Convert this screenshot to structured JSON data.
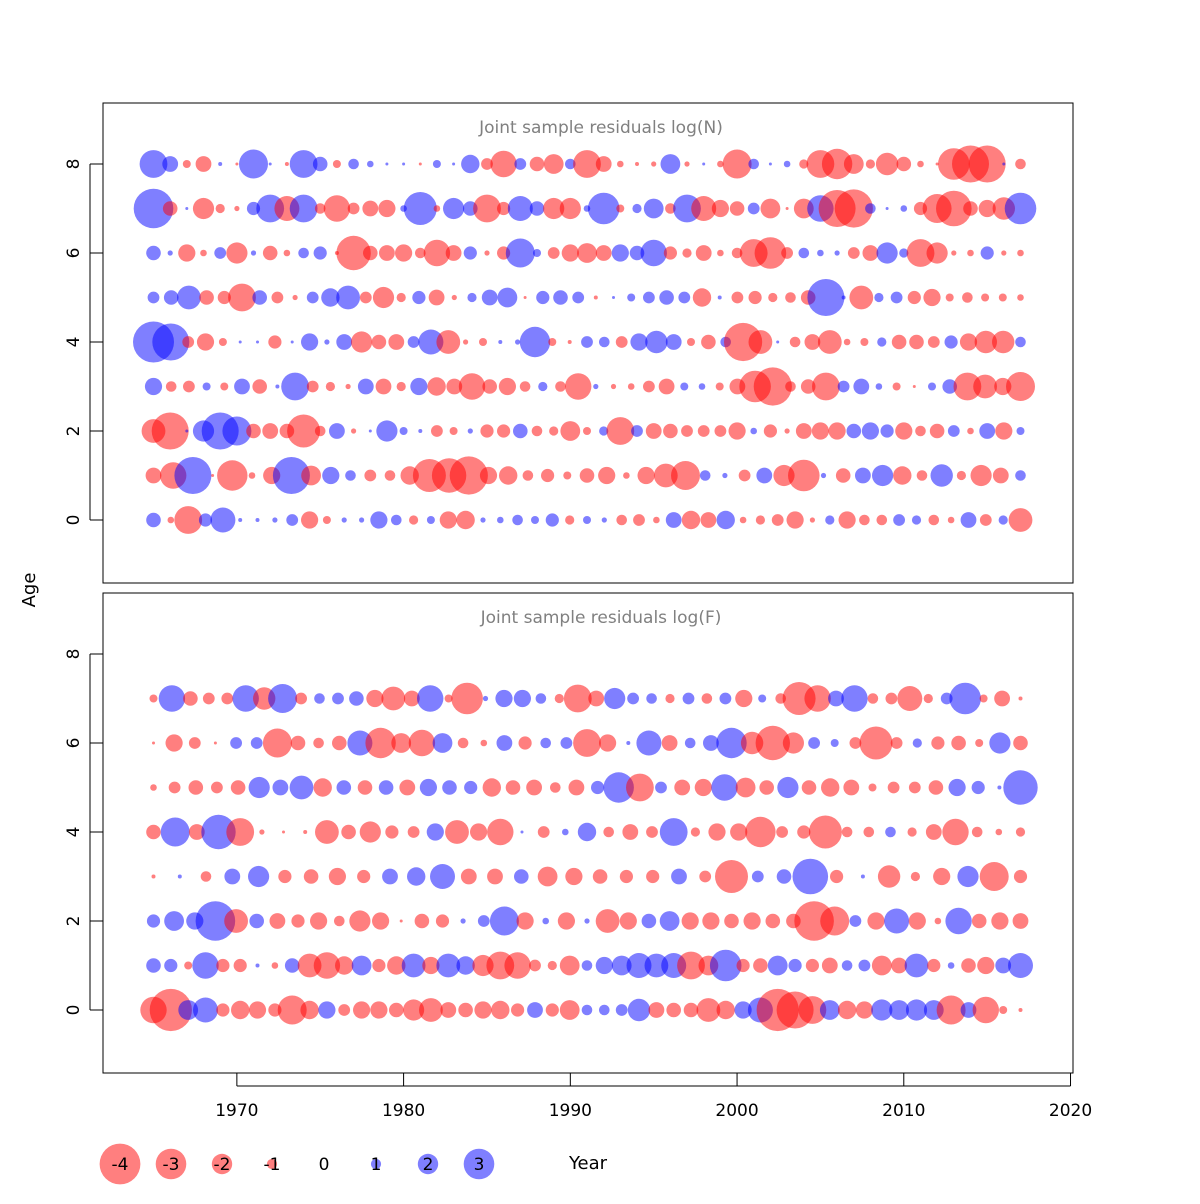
{
  "colors": {
    "negative": "#ff0000",
    "positive": "#0000ff",
    "bubble_opacity": 0.5,
    "title_color": "#808080",
    "axis_color": "#000000"
  },
  "chart_data": {
    "type": "scatter",
    "subtype": "bubble",
    "shared_axes": {
      "xlabel": "Year",
      "ylabel": "Age",
      "x_ticks": [
        1970,
        1980,
        1990,
        2000,
        2010,
        2020
      ],
      "y_ticks": [
        0,
        2,
        4,
        6,
        8
      ],
      "xlim": [
        1962,
        2020
      ],
      "ylim": [
        -1.3,
        9.3
      ]
    },
    "legend": {
      "placement": "bottom",
      "values": [
        -4,
        -3,
        -2,
        -1,
        0,
        1,
        2,
        3
      ],
      "labels": [
        "-4",
        "-3",
        "-2",
        "-1",
        "0",
        "1",
        "2",
        "3"
      ]
    },
    "panels": [
      {
        "title": "Joint sample residuals log(N)",
        "ages": [
          0,
          1,
          2,
          3,
          4,
          5,
          6,
          7,
          8
        ],
        "years": [
          1965,
          2017
        ],
        "residuals": {
          "8": [
            2.1,
            1.2,
            -0.6,
            -1.2,
            0.3,
            -0.2,
            2.2,
            0.1,
            -0.3,
            2.1,
            1.1,
            -0.6,
            0.8,
            0.5,
            0.2,
            0.0,
            -0.1,
            0.6,
            0.1,
            1.4,
            -0.9,
            -2.0,
            0.9,
            -1.1,
            -1.5,
            0.8,
            -2.1,
            -1.2,
            -0.5,
            -0.3,
            -0.4,
            1.5,
            -0.4,
            0.1,
            -0.5,
            -2.2,
            0.8,
            0.1,
            0.5,
            -0.7,
            -2.1,
            -2.3,
            -1.5,
            -0.7,
            -1.7,
            -1.1,
            -0.5,
            -0.2,
            -2.4,
            -2.8,
            -2.8,
            0.1,
            -0.8
          ],
          "7": [
            3.0,
            -1.1,
            0.2,
            -1.6,
            -0.7,
            -0.4,
            1.0,
            2.1,
            -1.9,
            2.1,
            -0.8,
            -2.0,
            -0.9,
            -1.2,
            -1.3,
            0.5,
            2.5,
            -0.5,
            1.6,
            1.1,
            -2.1,
            -1.0,
            1.9,
            1.1,
            -1.6,
            -1.6,
            0.5,
            2.4,
            -0.6,
            0.7,
            1.5,
            -0.8,
            2.1,
            -1.9,
            -1.3,
            -1.1,
            0.9,
            -1.5,
            -0.2,
            -1.5,
            2.0,
            -2.8,
            -2.9,
            0.8,
            0.2,
            0.5,
            -1.0,
            -2.2,
            -2.7,
            -1.1,
            -1.3,
            -1.7,
            2.4
          ],
          "6": [
            1.1,
            0.4,
            -1.3,
            -0.5,
            0.9,
            -1.6,
            0.4,
            -1.1,
            -0.5,
            0.8,
            1.0,
            -0.3,
            -2.6,
            -1.1,
            -1.2,
            -1.3,
            -0.8,
            -2.0,
            -1.2,
            1.0,
            -0.4,
            -1.0,
            2.2,
            0.6,
            -0.9,
            -1.3,
            -1.5,
            -1.2,
            1.3,
            1.1,
            2.0,
            -1.0,
            -0.7,
            -1.2,
            -0.5,
            -0.8,
            -2.1,
            -2.4,
            -0.9,
            0.8,
            0.5,
            0.4,
            -0.9,
            -1.2,
            1.6,
            0.7,
            -2.1,
            -1.6,
            -0.4,
            -0.5,
            1.0,
            -0.4,
            -0.5
          ],
          "5": [
            0.9,
            1.1,
            1.8,
            -1.1,
            -1.0,
            -2.1,
            1.1,
            -0.9,
            -0.4,
            0.9,
            1.4,
            1.8,
            -0.9,
            -1.6,
            -0.7,
            1.0,
            -1.2,
            -0.4,
            0.7,
            1.2,
            1.5,
            -0.2,
            1.0,
            1.1,
            0.9,
            -0.3,
            0.2,
            0.6,
            0.9,
            1.1,
            0.9,
            -1.4,
            0.3,
            -0.9,
            -1.0,
            -0.7,
            -0.8,
            -1.1,
            2.8,
            0.3,
            -1.8,
            0.7,
            0.9,
            -1.0,
            -1.3,
            -0.6,
            -0.8,
            -0.6,
            -0.6,
            -0.5
          ],
          "4": [
            3.1,
            2.8,
            -0.9,
            -1.3,
            -0.6,
            0.2,
            0.1,
            -1.0,
            0.2,
            1.3,
            0.4,
            1.2,
            -1.6,
            -1.1,
            -1.2,
            0.9,
            1.9,
            -1.8,
            -0.4,
            -0.6,
            0.3,
            0.4,
            2.3,
            -0.6,
            -0.3,
            0.9,
            0.8,
            -0.9,
            1.3,
            1.7,
            1.2,
            -0.6,
            -1.1,
            0.8,
            -2.9,
            -1.8,
            0.2,
            -0.8,
            -1.2,
            -1.8,
            -0.5,
            -0.6,
            0.7,
            -1.1,
            -1.1,
            -0.9,
            1.0,
            -1.3,
            -1.7,
            -1.7,
            0.8
          ],
          "3": [
            1.3,
            -0.8,
            -0.9,
            0.6,
            -0.6,
            1.2,
            -1.1,
            0.3,
            2.1,
            -0.9,
            -0.7,
            -0.4,
            1.2,
            -1.2,
            -0.7,
            1.3,
            -1.4,
            -1.2,
            -2.0,
            -1.1,
            -1.3,
            -0.8,
            0.7,
            -0.8,
            -2.0,
            0.4,
            -0.4,
            -0.5,
            -0.9,
            -1.2,
            0.6,
            0.5,
            -0.6,
            -1.2,
            -2.4,
            -2.9,
            -0.8,
            -1.1,
            -2.1,
            0.9,
            1.2,
            0.5,
            -0.6,
            -0.2,
            0.6,
            1.1,
            -2.1,
            -1.8,
            -1.3,
            -2.2
          ],
          "2": [
            -1.8,
            -2.8,
            0.2,
            1.6,
            2.8,
            2.2,
            -1.1,
            -1.2,
            -1.1,
            -2.5,
            -0.8,
            1.2,
            -0.4,
            0.2,
            1.6,
            0.6,
            0.3,
            -0.9,
            -0.6,
            0.4,
            -1.0,
            -1.0,
            1.1,
            -0.8,
            -0.7,
            -1.5,
            -0.6,
            0.7,
            -2.1,
            0.9,
            -1.2,
            -1.1,
            -0.9,
            -0.9,
            -0.9,
            -1.3,
            0.5,
            -1.0,
            -0.4,
            -1.2,
            -1.3,
            -1.3,
            1.1,
            1.3,
            1.0,
            -1.3,
            -0.8,
            -1.1,
            0.9,
            -0.5,
            1.2,
            -1.3,
            0.6
          ],
          "1": [
            -1.2,
            -2.0,
            2.8,
            -0.2,
            -2.3,
            -0.5,
            -1.3,
            2.8,
            -1.5,
            1.3,
            0.8,
            -0.9,
            -0.8,
            -1.4,
            -2.5,
            -2.6,
            -2.9,
            -1.3,
            -1.4,
            -0.8,
            -1.0,
            -0.6,
            -1.1,
            -1.3,
            -0.5,
            -1.3,
            -1.8,
            -2.2,
            0.8,
            0.4,
            -0.9,
            1.2,
            -1.6,
            -2.4,
            0.4,
            -1.1,
            1.2,
            1.6,
            -1.4,
            -0.8,
            1.7,
            -0.7,
            -1.6,
            -1.2,
            0.8
          ],
          "0": [
            1.1,
            -0.5,
            -2.1,
            1.0,
            1.9,
            0.3,
            0.3,
            0.4,
            0.9,
            -1.3,
            -0.6,
            0.4,
            0.4,
            1.3,
            0.8,
            -0.7,
            0.6,
            -1.3,
            -1.4,
            0.4,
            0.5,
            0.8,
            0.6,
            1.0,
            -0.7,
            0.6,
            0.4,
            -0.8,
            -0.9,
            -0.5,
            1.2,
            -1.4,
            -1.2,
            1.4,
            -0.5,
            -0.7,
            -0.9,
            -1.3,
            -0.4,
            0.7,
            -1.3,
            -0.8,
            -0.8,
            0.9,
            0.7,
            -0.8,
            -0.5,
            1.2,
            -0.9,
            0.7,
            -1.8
          ]
        }
      },
      {
        "title": "Joint sample residuals log(F)",
        "ages": [
          0,
          1,
          2,
          3,
          4,
          5,
          6,
          7
        ],
        "years": [
          1965,
          2017
        ],
        "residuals": {
          "7": [
            -0.6,
            2.0,
            -1.1,
            -0.9,
            -0.9,
            2.0,
            -1.7,
            2.2,
            -0.9,
            0.8,
            0.9,
            1.1,
            -1.3,
            -1.8,
            -1.2,
            2.0,
            -0.6,
            -2.4,
            0.4,
            1.3,
            1.3,
            0.8,
            -0.7,
            -2.1,
            -1.2,
            1.6,
            0.9,
            0.8,
            -0.7,
            0.9,
            -0.8,
            0.9,
            -1.3,
            0.6,
            -0.8,
            -2.5,
            -2.0,
            1.2,
            2.0,
            -0.8,
            -0.9,
            -1.9,
            -0.7,
            0.9,
            2.4,
            -0.6,
            -1.2,
            -0.3
          ],
          "6": [
            -0.2,
            -1.3,
            -0.9,
            -0.2,
            0.9,
            0.9,
            -2.2,
            -1.1,
            -0.8,
            -1.1,
            1.9,
            -2.3,
            -1.5,
            -2.0,
            1.5,
            -0.8,
            -0.5,
            1.2,
            -1.0,
            0.8,
            0.9,
            -2.1,
            -1.3,
            0.3,
            1.9,
            -1.2,
            0.8,
            1.2,
            2.3,
            -1.7,
            -2.6,
            -1.6,
            0.9,
            0.6,
            -0.9,
            -2.5,
            -0.9,
            0.7,
            -1.0,
            -1.1,
            -0.6,
            1.6,
            -1.1
          ],
          "5": [
            -0.5,
            -0.9,
            -1.1,
            -0.9,
            -1.1,
            1.6,
            1.2,
            1.8,
            -1.4,
            1.1,
            -1.1,
            1.1,
            -1.2,
            1.3,
            1.1,
            1.0,
            -1.4,
            -1.1,
            -1.2,
            -0.8,
            -1.2,
            1.0,
            2.3,
            -2.1,
            0.9,
            -1.2,
            -1.3,
            2.0,
            -1.5,
            -1.1,
            1.6,
            -1.1,
            -1.4,
            -1.2,
            -0.6,
            -0.9,
            -0.9,
            -1.1,
            1.3,
            1.0,
            0.3,
            2.6
          ],
          "4": [
            -1.1,
            2.2,
            -1.2,
            2.6,
            -2.1,
            -0.4,
            -0.2,
            -0.3,
            -1.8,
            -1.1,
            -1.6,
            -1.0,
            -0.9,
            1.3,
            -1.8,
            -1.3,
            -2.0,
            0.2,
            -0.9,
            0.5,
            1.4,
            -0.8,
            -1.2,
            -0.9,
            2.1,
            -0.7,
            -1.3,
            -1.3,
            -2.3,
            -0.9,
            -1.0,
            -2.5,
            -0.8,
            -0.8,
            0.8,
            -0.7,
            -1.2,
            -2.0,
            -0.8,
            -0.5,
            -0.7
          ],
          "3": [
            -0.3,
            0.3,
            -0.8,
            1.2,
            1.6,
            -1.0,
            -1.1,
            -1.3,
            -1.0,
            1.2,
            1.4,
            1.9,
            -1.2,
            -1.2,
            1.1,
            -1.5,
            -1.3,
            -1.1,
            -1.0,
            -1.0,
            1.2,
            -0.9,
            -2.5,
            0.9,
            1.1,
            2.7,
            -1.0,
            0.3,
            -1.7,
            -0.7,
            -1.3,
            1.6,
            -2.2,
            -1.0
          ],
          "2": [
            1.0,
            1.5,
            1.3,
            3.0,
            -1.8,
            1.1,
            -1.2,
            -1.0,
            -1.3,
            -0.8,
            -1.6,
            -1.3,
            -0.2,
            -1.1,
            -1.0,
            0.4,
            0.9,
            2.2,
            -1.3,
            0.5,
            -1.3,
            0.4,
            -1.8,
            -1.3,
            1.1,
            1.5,
            -1.3,
            -1.3,
            -1.1,
            -1.3,
            -1.1,
            -1.1,
            -3.0,
            -2.2,
            0.9,
            -1.3,
            1.9,
            -1.3,
            -0.5,
            2.0,
            -1.1,
            -1.3,
            -1.2
          ],
          "1": [
            1.1,
            1.0,
            -0.6,
            2.0,
            -1.0,
            -1.0,
            0.3,
            -0.5,
            1.1,
            -1.8,
            -2.0,
            -1.4,
            1.5,
            -1.0,
            -1.4,
            1.8,
            -1.3,
            1.8,
            1.4,
            -1.6,
            -2.1,
            -2.0,
            -0.9,
            -0.7,
            -1.5,
            0.8,
            1.3,
            1.5,
            1.9,
            1.8,
            1.9,
            -2.1,
            -1.5,
            2.4,
            -1.0,
            -1.1,
            1.5,
            1.0,
            -1.0,
            -1.2,
            0.8,
            0.9,
            -1.5,
            -1.2,
            1.8,
            -1.0,
            0.5,
            -1.1,
            -1.3,
            1.2,
            1.9
          ],
          "0": [
            -2.0,
            -3.2,
            1.5,
            1.9,
            -1.0,
            -1.4,
            -1.3,
            -1.0,
            -2.2,
            -1.4,
            1.3,
            -0.9,
            -1.3,
            -1.3,
            -1.1,
            -1.6,
            -1.8,
            -1.2,
            -1.1,
            -1.3,
            -1.4,
            -1.0,
            1.2,
            -1.0,
            -1.5,
            0.8,
            0.8,
            0.9,
            1.7,
            -1.2,
            -1.1,
            -1.1,
            -1.8,
            -1.4,
            1.3,
            1.9,
            -3.2,
            -2.8,
            -2.1,
            1.5,
            -1.4,
            -1.3,
            1.6,
            1.5,
            1.6,
            1.5,
            -2.2,
            1.2,
            -2.0,
            -0.6,
            -0.3
          ]
        }
      }
    ]
  }
}
